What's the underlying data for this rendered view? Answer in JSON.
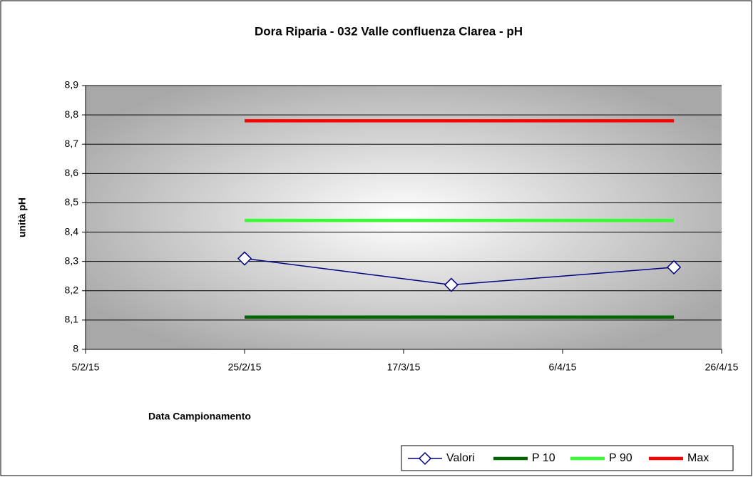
{
  "chart_data": {
    "type": "line",
    "title": "Dora Riparia - 032 Valle confluenza Clarea - pH",
    "x_label": "Data Campionamento",
    "y_label": "unità pH",
    "x": [
      "2015-02-25",
      "2015-03-23",
      "2015-04-20"
    ],
    "series": [
      {
        "name": "Valori",
        "color": "#000080",
        "marker": "diamond",
        "values": [
          8.31,
          8.22,
          8.28
        ]
      },
      {
        "name": "P 10",
        "color": "#006400",
        "values": [
          8.11,
          8.11,
          8.11
        ]
      },
      {
        "name": "P 90",
        "color": "#33ff33",
        "values": [
          8.44,
          8.44,
          8.44
        ]
      },
      {
        "name": "Max",
        "color": "#ff0000",
        "values": [
          8.78,
          8.78,
          8.78
        ]
      }
    ],
    "xlim": [
      "2015-02-05",
      "2015-04-26"
    ],
    "xticks": [
      {
        "value": "2015-02-05",
        "label": "5/2/15"
      },
      {
        "value": "2015-02-25",
        "label": "25/2/15"
      },
      {
        "value": "2015-03-17",
        "label": "17/3/15"
      },
      {
        "value": "2015-04-06",
        "label": "6/4/15"
      },
      {
        "value": "2015-04-26",
        "label": "26/4/15"
      }
    ],
    "ylim": [
      8,
      8.9
    ],
    "yticks": [
      8,
      {
        "value": 8.1,
        "label": "8,1"
      },
      {
        "value": 8.2,
        "label": "8,2"
      },
      {
        "value": 8.3,
        "label": "8,3"
      },
      {
        "value": 8.4,
        "label": "8,4"
      },
      {
        "value": 8.5,
        "label": "8,5"
      },
      {
        "value": 8.6,
        "label": "8,6"
      },
      {
        "value": 8.7,
        "label": "8,7"
      },
      {
        "value": 8.8,
        "label": "8,8"
      },
      {
        "value": 8.9,
        "label": "8,9"
      }
    ],
    "grid": true,
    "legend": "bottom-right"
  }
}
